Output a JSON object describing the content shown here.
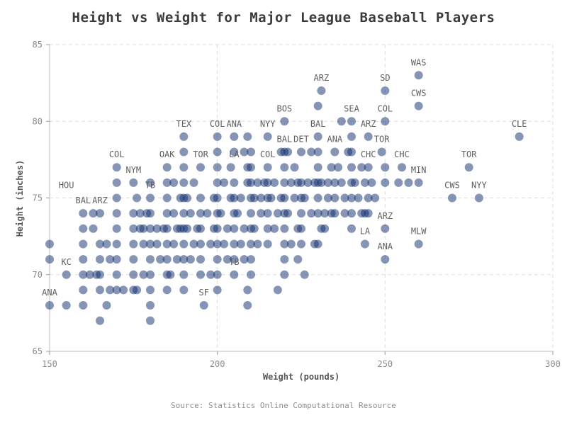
{
  "chart_data": {
    "type": "scatter",
    "title": "Height vs Weight for Major League Baseball Players",
    "xlabel": "Weight (pounds)",
    "ylabel": "Height (inches)",
    "xlim": [
      150,
      300
    ],
    "ylim": [
      65,
      85
    ],
    "xticks": [
      150,
      200,
      250,
      300
    ],
    "yticks": [
      65,
      70,
      75,
      80,
      85
    ],
    "grid": true,
    "marker_color": "#0d2c6b",
    "marker_opacity": 0.5,
    "source": "Source: Statistics Online Computational Resource",
    "annotations": [
      {
        "team": "WAS",
        "x": 260,
        "y": 83
      },
      {
        "team": "ARZ",
        "x": 231,
        "y": 82
      },
      {
        "team": "SD",
        "x": 250,
        "y": 82
      },
      {
        "team": "CWS",
        "x": 260,
        "y": 81
      },
      {
        "team": "BOS",
        "x": 220,
        "y": 80
      },
      {
        "team": "SEA",
        "x": 240,
        "y": 80
      },
      {
        "team": "COL",
        "x": 250,
        "y": 80
      },
      {
        "team": "CLE",
        "x": 290,
        "y": 79
      },
      {
        "team": "TEX",
        "x": 190,
        "y": 79
      },
      {
        "team": "COL",
        "x": 200,
        "y": 79
      },
      {
        "team": "ANA",
        "x": 205,
        "y": 79
      },
      {
        "team": "NYY",
        "x": 215,
        "y": 79
      },
      {
        "team": "BAL",
        "x": 230,
        "y": 79
      },
      {
        "team": "ARZ",
        "x": 245,
        "y": 79
      },
      {
        "team": "ANA",
        "x": 235,
        "y": 78
      },
      {
        "team": "TOR",
        "x": 249,
        "y": 78
      },
      {
        "team": "BAL",
        "x": 220,
        "y": 78
      },
      {
        "team": "DET",
        "x": 225,
        "y": 78
      },
      {
        "team": "COL",
        "x": 170,
        "y": 77
      },
      {
        "team": "OAK",
        "x": 185,
        "y": 77
      },
      {
        "team": "TOR",
        "x": 195,
        "y": 77
      },
      {
        "team": "LA",
        "x": 205,
        "y": 77
      },
      {
        "team": "COL",
        "x": 215,
        "y": 77
      },
      {
        "team": "CHC",
        "x": 245,
        "y": 77
      },
      {
        "team": "CHC",
        "x": 255,
        "y": 77
      },
      {
        "team": "TOR",
        "x": 275,
        "y": 77
      },
      {
        "team": "NYM",
        "x": 175,
        "y": 76
      },
      {
        "team": "MIN",
        "x": 260,
        "y": 76
      },
      {
        "team": "HOU",
        "x": 155,
        "y": 75
      },
      {
        "team": "TB",
        "x": 180,
        "y": 75
      },
      {
        "team": "CWS",
        "x": 270,
        "y": 75
      },
      {
        "team": "NYY",
        "x": 278,
        "y": 75
      },
      {
        "team": "BAL",
        "x": 160,
        "y": 74
      },
      {
        "team": "ARZ",
        "x": 165,
        "y": 74
      },
      {
        "team": "ARZ",
        "x": 250,
        "y": 73
      },
      {
        "team": "LA",
        "x": 244,
        "y": 72
      },
      {
        "team": "MLW",
        "x": 260,
        "y": 72
      },
      {
        "team": "KC",
        "x": 155,
        "y": 70
      },
      {
        "team": "TB",
        "x": 205,
        "y": 70
      },
      {
        "team": "ANA",
        "x": 250,
        "y": 71
      },
      {
        "team": "ANA",
        "x": 150,
        "y": 68
      },
      {
        "team": "SF",
        "x": 196,
        "y": 68
      }
    ],
    "points": [
      [
        150,
        72
      ],
      [
        150,
        71
      ],
      [
        150,
        68
      ],
      [
        155,
        70
      ],
      [
        155,
        68
      ],
      [
        160,
        74
      ],
      [
        160,
        73
      ],
      [
        160,
        72
      ],
      [
        160,
        71
      ],
      [
        160,
        70
      ],
      [
        160,
        69
      ],
      [
        160,
        68
      ],
      [
        162,
        70
      ],
      [
        163,
        74
      ],
      [
        163,
        73
      ],
      [
        164,
        70
      ],
      [
        165,
        74
      ],
      [
        165,
        72
      ],
      [
        165,
        71
      ],
      [
        165,
        70
      ],
      [
        165,
        69
      ],
      [
        165,
        67
      ],
      [
        167,
        72
      ],
      [
        167,
        68
      ],
      [
        168,
        71
      ],
      [
        168,
        69
      ],
      [
        170,
        77
      ],
      [
        170,
        76
      ],
      [
        170,
        75
      ],
      [
        170,
        74
      ],
      [
        170,
        73
      ],
      [
        170,
        72
      ],
      [
        170,
        71
      ],
      [
        170,
        70
      ],
      [
        170,
        69
      ],
      [
        172,
        69
      ],
      [
        175,
        76
      ],
      [
        175,
        74
      ],
      [
        175,
        73
      ],
      [
        175,
        72
      ],
      [
        175,
        71
      ],
      [
        175,
        70
      ],
      [
        175,
        69
      ],
      [
        176,
        75
      ],
      [
        176,
        69
      ],
      [
        177,
        74
      ],
      [
        177,
        73
      ],
      [
        178,
        72
      ],
      [
        178,
        73
      ],
      [
        178,
        70
      ],
      [
        179,
        74
      ],
      [
        180,
        76
      ],
      [
        180,
        75
      ],
      [
        180,
        74
      ],
      [
        180,
        73
      ],
      [
        180,
        72
      ],
      [
        180,
        71
      ],
      [
        180,
        70
      ],
      [
        180,
        69
      ],
      [
        180,
        68
      ],
      [
        180,
        67
      ],
      [
        182,
        73
      ],
      [
        182,
        72
      ],
      [
        183,
        71
      ],
      [
        184,
        73
      ],
      [
        185,
        77
      ],
      [
        185,
        76
      ],
      [
        185,
        75
      ],
      [
        185,
        74
      ],
      [
        185,
        73
      ],
      [
        185,
        72
      ],
      [
        185,
        71
      ],
      [
        185,
        70
      ],
      [
        185,
        69
      ],
      [
        186,
        70
      ],
      [
        187,
        76
      ],
      [
        187,
        74
      ],
      [
        187,
        72
      ],
      [
        188,
        73
      ],
      [
        188,
        71
      ],
      [
        189,
        75
      ],
      [
        189,
        73
      ],
      [
        190,
        78
      ],
      [
        190,
        79
      ],
      [
        190,
        77
      ],
      [
        190,
        76
      ],
      [
        190,
        75
      ],
      [
        190,
        74
      ],
      [
        190,
        73
      ],
      [
        190,
        72
      ],
      [
        190,
        71
      ],
      [
        190,
        70
      ],
      [
        190,
        69
      ],
      [
        191,
        75
      ],
      [
        191,
        73
      ],
      [
        192,
        71
      ],
      [
        192,
        74
      ],
      [
        193,
        72
      ],
      [
        193,
        76
      ],
      [
        194,
        73
      ],
      [
        195,
        77
      ],
      [
        195,
        75
      ],
      [
        195,
        74
      ],
      [
        195,
        73
      ],
      [
        195,
        72
      ],
      [
        195,
        71
      ],
      [
        195,
        70
      ],
      [
        196,
        68
      ],
      [
        197,
        74
      ],
      [
        198,
        72
      ],
      [
        198,
        70
      ],
      [
        199,
        75
      ],
      [
        199,
        73
      ],
      [
        200,
        79
      ],
      [
        200,
        78
      ],
      [
        200,
        77
      ],
      [
        200,
        76
      ],
      [
        200,
        75
      ],
      [
        200,
        74
      ],
      [
        200,
        73
      ],
      [
        200,
        72
      ],
      [
        200,
        71
      ],
      [
        200,
        70
      ],
      [
        200,
        69
      ],
      [
        201,
        74
      ],
      [
        202,
        72
      ],
      [
        202,
        76
      ],
      [
        203,
        73
      ],
      [
        203,
        71
      ],
      [
        204,
        77
      ],
      [
        204,
        75
      ],
      [
        205,
        79
      ],
      [
        205,
        78
      ],
      [
        205,
        76
      ],
      [
        205,
        75
      ],
      [
        205,
        74
      ],
      [
        205,
        73
      ],
      [
        205,
        72
      ],
      [
        205,
        71
      ],
      [
        205,
        70
      ],
      [
        206,
        74
      ],
      [
        207,
        72
      ],
      [
        207,
        75
      ],
      [
        208,
        78
      ],
      [
        208,
        73
      ],
      [
        208,
        71
      ],
      [
        209,
        79
      ],
      [
        209,
        77
      ],
      [
        209,
        76
      ],
      [
        209,
        69
      ],
      [
        209,
        68
      ],
      [
        210,
        78
      ],
      [
        210,
        77
      ],
      [
        210,
        76
      ],
      [
        210,
        75
      ],
      [
        210,
        74
      ],
      [
        210,
        73
      ],
      [
        210,
        72
      ],
      [
        210,
        71
      ],
      [
        210,
        70
      ],
      [
        211,
        75
      ],
      [
        211,
        73
      ],
      [
        212,
        76
      ],
      [
        212,
        72
      ],
      [
        213,
        74
      ],
      [
        213,
        75
      ],
      [
        214,
        76
      ],
      [
        215,
        79
      ],
      [
        215,
        77
      ],
      [
        215,
        76
      ],
      [
        215,
        75
      ],
      [
        215,
        74
      ],
      [
        215,
        73
      ],
      [
        215,
        72
      ],
      [
        216,
        75
      ],
      [
        217,
        76
      ],
      [
        217,
        73
      ],
      [
        218,
        74
      ],
      [
        218,
        69
      ],
      [
        219,
        78
      ],
      [
        219,
        75
      ],
      [
        220,
        80
      ],
      [
        220,
        78
      ],
      [
        220,
        77
      ],
      [
        220,
        76
      ],
      [
        220,
        75
      ],
      [
        220,
        74
      ],
      [
        220,
        73
      ],
      [
        220,
        72
      ],
      [
        220,
        71
      ],
      [
        220,
        70
      ],
      [
        221,
        78
      ],
      [
        221,
        74
      ],
      [
        222,
        76
      ],
      [
        222,
        72
      ],
      [
        223,
        75
      ],
      [
        223,
        77
      ],
      [
        224,
        76
      ],
      [
        224,
        73
      ],
      [
        224,
        71
      ],
      [
        225,
        78
      ],
      [
        225,
        76
      ],
      [
        225,
        75
      ],
      [
        225,
        74
      ],
      [
        225,
        73
      ],
      [
        225,
        72
      ],
      [
        226,
        75
      ],
      [
        226,
        70
      ],
      [
        227,
        76
      ],
      [
        228,
        74
      ],
      [
        228,
        78
      ],
      [
        229,
        76
      ],
      [
        229,
        72
      ],
      [
        230,
        81
      ],
      [
        230,
        79
      ],
      [
        230,
        78
      ],
      [
        230,
        77
      ],
      [
        230,
        76
      ],
      [
        230,
        75
      ],
      [
        230,
        74
      ],
      [
        230,
        72
      ],
      [
        231,
        82
      ],
      [
        231,
        76
      ],
      [
        231,
        73
      ],
      [
        232,
        74
      ],
      [
        232,
        73
      ],
      [
        233,
        75
      ],
      [
        233,
        76
      ],
      [
        234,
        74
      ],
      [
        234,
        77
      ],
      [
        235,
        78
      ],
      [
        235,
        76
      ],
      [
        235,
        75
      ],
      [
        235,
        74
      ],
      [
        236,
        77
      ],
      [
        237,
        76
      ],
      [
        237,
        80
      ],
      [
        238,
        75
      ],
      [
        238,
        74
      ],
      [
        239,
        78
      ],
      [
        240,
        80
      ],
      [
        240,
        79
      ],
      [
        240,
        78
      ],
      [
        240,
        77
      ],
      [
        240,
        76
      ],
      [
        240,
        75
      ],
      [
        240,
        74
      ],
      [
        240,
        73
      ],
      [
        241,
        76
      ],
      [
        242,
        75
      ],
      [
        243,
        74
      ],
      [
        243,
        77
      ],
      [
        244,
        76
      ],
      [
        244,
        72
      ],
      [
        244,
        74
      ],
      [
        245,
        79
      ],
      [
        245,
        77
      ],
      [
        245,
        75
      ],
      [
        245,
        74
      ],
      [
        246,
        76
      ],
      [
        247,
        75
      ],
      [
        249,
        78
      ],
      [
        250,
        82
      ],
      [
        250,
        80
      ],
      [
        250,
        77
      ],
      [
        250,
        76
      ],
      [
        250,
        73
      ],
      [
        250,
        71
      ],
      [
        254,
        76
      ],
      [
        255,
        77
      ],
      [
        257,
        76
      ],
      [
        260,
        83
      ],
      [
        260,
        81
      ],
      [
        260,
        76
      ],
      [
        260,
        72
      ],
      [
        270,
        75
      ],
      [
        275,
        77
      ],
      [
        278,
        75
      ],
      [
        290,
        79
      ]
    ]
  }
}
